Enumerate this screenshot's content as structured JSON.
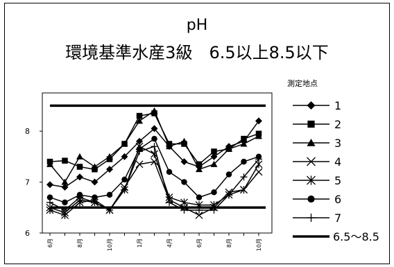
{
  "chart_data": {
    "type": "line",
    "title": "pH",
    "subtitle": "環境基準水産3級　6.5以上8.5以下",
    "legend_title": "測定地点",
    "legend_position": "right",
    "grid": false,
    "ylim": [
      6,
      8.75
    ],
    "yticks": [
      6,
      7,
      8
    ],
    "x_tick_labels": [
      "6月",
      "8月",
      "10月",
      "1月",
      "4月",
      "6月",
      "8月",
      "10月"
    ],
    "x_tick_positions": [
      0,
      2,
      4,
      6,
      8,
      10,
      12,
      14
    ],
    "x": [
      0,
      1,
      2,
      3,
      4,
      5,
      6,
      7,
      8,
      9,
      10,
      11,
      12,
      13,
      14
    ],
    "series": [
      {
        "name": "1",
        "marker": "diamond",
        "values": [
          6.95,
          6.9,
          7.1,
          7.0,
          7.25,
          7.5,
          7.8,
          8.05,
          7.7,
          7.4,
          7.3,
          7.5,
          7.7,
          7.8,
          8.2
        ]
      },
      {
        "name": "2",
        "marker": "square",
        "values": [
          7.4,
          7.42,
          7.3,
          7.25,
          7.45,
          7.75,
          8.3,
          8.35,
          7.75,
          7.75,
          7.35,
          7.6,
          7.65,
          7.85,
          7.95
        ]
      },
      {
        "name": "3",
        "marker": "triangle",
        "values": [
          7.35,
          7.0,
          7.5,
          7.3,
          7.5,
          7.75,
          8.2,
          8.4,
          7.7,
          7.8,
          7.25,
          7.35,
          7.65,
          7.75,
          7.9
        ]
      },
      {
        "name": "4",
        "marker": "x",
        "values": [
          6.5,
          6.4,
          6.65,
          6.6,
          6.45,
          6.9,
          7.35,
          7.4,
          6.65,
          6.5,
          6.35,
          6.5,
          6.8,
          6.85,
          7.2
        ]
      },
      {
        "name": "5",
        "marker": "asterisk",
        "values": [
          6.45,
          6.35,
          6.6,
          6.65,
          6.45,
          6.85,
          7.7,
          7.55,
          6.7,
          6.6,
          6.55,
          6.55,
          6.75,
          6.85,
          7.35
        ]
      },
      {
        "name": "6",
        "marker": "circle",
        "values": [
          6.7,
          6.6,
          6.75,
          6.7,
          6.75,
          7.05,
          7.65,
          7.85,
          7.2,
          7.0,
          6.7,
          6.8,
          7.15,
          7.4,
          7.5
        ]
      },
      {
        "name": "7",
        "marker": "plus",
        "values": [
          6.6,
          6.45,
          6.7,
          6.6,
          6.45,
          6.85,
          7.6,
          7.7,
          6.6,
          6.45,
          6.45,
          6.45,
          6.75,
          7.1,
          7.45
        ]
      }
    ],
    "reference_lines": [
      {
        "name": "6.5～8.5",
        "values": [
          6.5,
          8.5
        ]
      }
    ]
  }
}
